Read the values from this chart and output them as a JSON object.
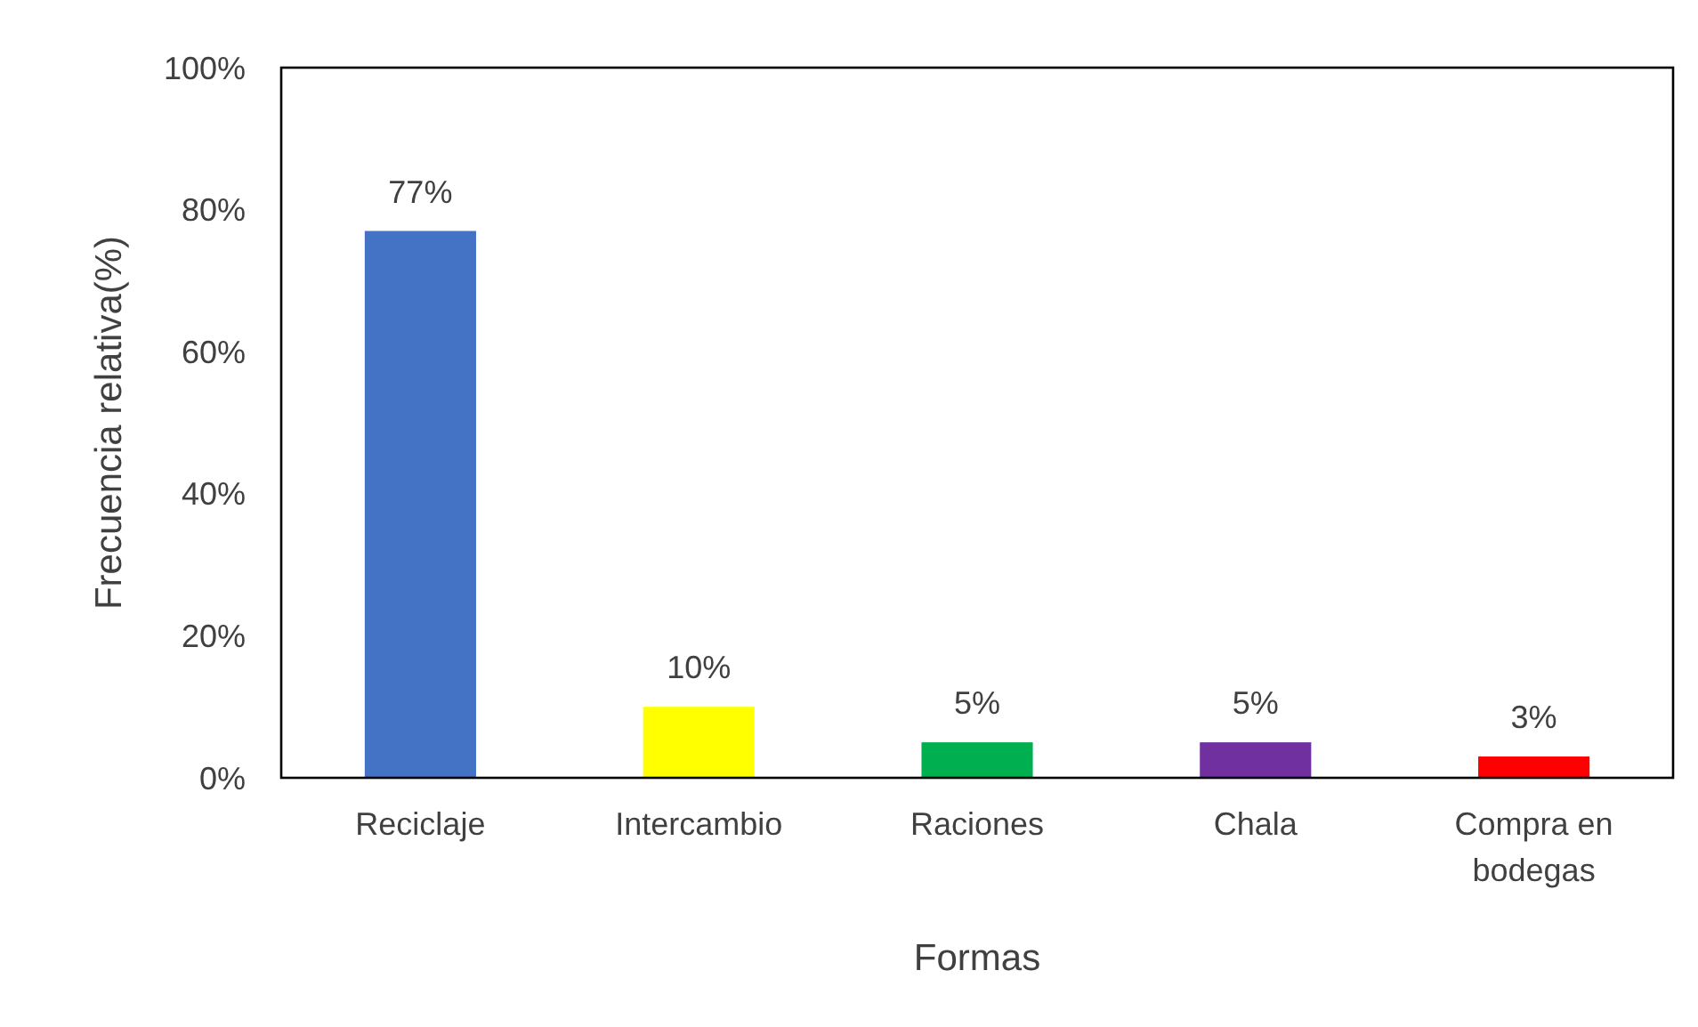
{
  "chart_data": {
    "type": "bar",
    "xlabel": "Formas",
    "ylabel": "Frecuencia relativa(%)",
    "categories": [
      "Reciclaje",
      "Intercambio",
      "Raciones",
      "Chala",
      "Compra en bodegas"
    ],
    "values": [
      77,
      10,
      5,
      5,
      3
    ],
    "colors": [
      "#4472c4",
      "#ffff00",
      "#00b050",
      "#7030a0",
      "#ff0000"
    ],
    "value_labels": [
      "77%",
      "10%",
      "5%",
      "5%",
      "3%"
    ],
    "ylim": [
      0,
      100
    ],
    "yticks": [
      {
        "value": 0,
        "label": "0%"
      },
      {
        "value": 20,
        "label": "20%"
      },
      {
        "value": 40,
        "label": "40%"
      },
      {
        "value": 60,
        "label": "60%"
      },
      {
        "value": 80,
        "label": "80%"
      },
      {
        "value": 100,
        "label": "100%"
      }
    ],
    "grid": false
  }
}
